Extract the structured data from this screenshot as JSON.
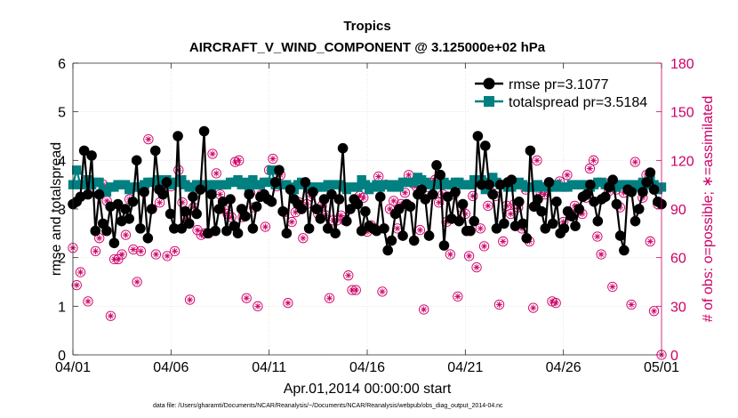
{
  "chart_data": {
    "type": "line",
    "title": "Tropics",
    "subtitle": "AIRCRAFT_V_WIND_COMPONENT @ 3.125000e+02 hPa",
    "xlabel": "Apr.01,2014 00:00:00 start",
    "ylabel": "rmse and totalspread",
    "y2label": "# of obs: o=possible; ∗=assimilated",
    "footnote": "data file: /Users/gharamti/Documents/NCAR/Reanalysis/~/Documents/NCAR/Reanalysis/webpub/obs_diag_output_2014-04.nc",
    "xlim": [
      0,
      30
    ],
    "ylim": [
      0,
      6
    ],
    "y2lim": [
      0,
      180
    ],
    "xticks": [
      0,
      5,
      10,
      15,
      20,
      25,
      30
    ],
    "xtick_labels": [
      "04/01",
      "04/06",
      "04/11",
      "04/16",
      "04/21",
      "04/26",
      "05/01"
    ],
    "yticks": [
      0,
      1,
      2,
      3,
      4,
      5,
      6
    ],
    "ytick_labels": [
      "0",
      "1",
      "2",
      "3",
      "4",
      "5",
      "6"
    ],
    "y2ticks": [
      0,
      30,
      60,
      90,
      120,
      150,
      180
    ],
    "y2tick_labels": [
      "0",
      "30",
      "60",
      "90",
      "120",
      "150",
      "180"
    ],
    "grid": true,
    "legend_position": "top-right",
    "colors": {
      "rmse": "#000000",
      "spread": "#008080",
      "obs": "#cc0066"
    },
    "series": [
      {
        "name": "rmse pr=3.1077",
        "axis": "left",
        "marker": "circle",
        "values": [
          3.1,
          3.15,
          3.25,
          4.2,
          3.3,
          4.1,
          2.55,
          3.3,
          2.7,
          2.55,
          3.05,
          2.3,
          3.1,
          2.75,
          3.0,
          2.8,
          3.15,
          4.0,
          2.6,
          3.35,
          2.4,
          3.0,
          4.2,
          3.4,
          3.3,
          3.55,
          2.9,
          2.6,
          4.5,
          2.6,
          2.95,
          2.7,
          3.25,
          2.9,
          3.4,
          4.6,
          2.5,
          3.3,
          2.55,
          3.0,
          3.15,
          2.55,
          3.2,
          2.65,
          2.5,
          3.0,
          2.85,
          3.3,
          2.6,
          3.05,
          3.25,
          3.3,
          3.2,
          3.15,
          3.55,
          3.8,
          2.95,
          2.5,
          3.4,
          3.2,
          3.1,
          3.0,
          3.55,
          2.6,
          3.35,
          3.0,
          2.8,
          3.2,
          2.6,
          3.3,
          2.5,
          3.2,
          4.25,
          2.75,
          3.0,
          3.2,
          3.1,
          2.55,
          2.95,
          2.65,
          2.6,
          2.55,
          3.25,
          2.6,
          2.15,
          2.35,
          2.9,
          3.0,
          2.45,
          3.1,
          3.05,
          2.35,
          3.3,
          3.4,
          3.2,
          2.45,
          3.3,
          3.9,
          3.7,
          2.25,
          3.25,
          2.8,
          3.35,
          2.75,
          3.1,
          2.55,
          2.55,
          2.75,
          4.5,
          3.5,
          4.3,
          3.5,
          3.3,
          2.6,
          3.5,
          2.7,
          3.55,
          3.6,
          2.65,
          3.15,
          2.7,
          2.4,
          4.2,
          3.05,
          3.2,
          2.95,
          2.6,
          3.55,
          2.7,
          3.15,
          2.5,
          2.6,
          2.95,
          2.85,
          2.65,
          3.0,
          3.25,
          3.3,
          3.5,
          3.15,
          2.75,
          3.2,
          3.25,
          3.45,
          3.6,
          3.1,
          2.45,
          2.15,
          3.4,
          3.35,
          2.75,
          3.0,
          3.35,
          3.55,
          3.75,
          3.4,
          3.15,
          3.1
        ]
      },
      {
        "name": "totalspread pr=3.5184",
        "axis": "left",
        "marker": "square",
        "values": [
          3.5,
          3.8,
          3.5,
          3.5,
          3.6,
          3.5,
          3.55,
          3.55,
          3.4,
          3.35,
          3.45,
          3.45,
          3.5,
          3.5,
          3.5,
          3.4,
          3.45,
          3.45,
          3.45,
          3.5,
          3.55,
          3.55,
          3.55,
          3.6,
          3.55,
          3.6,
          3.5,
          3.55,
          3.55,
          3.6,
          3.5,
          3.45,
          3.45,
          3.5,
          3.5,
          3.45,
          3.5,
          3.45,
          3.5,
          3.5,
          3.5,
          3.5,
          3.55,
          3.55,
          3.6,
          3.5,
          3.55,
          3.4,
          3.6,
          3.5,
          3.5,
          3.55,
          3.55,
          3.8,
          3.5,
          3.5,
          3.5,
          3.5,
          3.45,
          3.4,
          3.5,
          3.55,
          3.5,
          3.45,
          3.45,
          3.45,
          3.45,
          3.45,
          3.5,
          3.5,
          3.5,
          3.5,
          3.45,
          3.4,
          3.45,
          3.45,
          3.45,
          3.6,
          3.5,
          3.4,
          3.45,
          3.5,
          3.45,
          3.5,
          3.5,
          3.45,
          3.5,
          3.45,
          3.55,
          3.55,
          3.55,
          3.55,
          3.65,
          3.6,
          3.55,
          3.5,
          3.5,
          3.5,
          3.5,
          3.55,
          3.5,
          3.5,
          3.55,
          3.55,
          3.5,
          3.5,
          3.5,
          3.6,
          3.55,
          3.6,
          3.4,
          3.55,
          3.65,
          3.55,
          3.5,
          3.5,
          3.45,
          3.45,
          3.5,
          3.55,
          3.5,
          3.45,
          3.45,
          3.45,
          3.5,
          3.45,
          3.45,
          3.45,
          3.45,
          3.5,
          3.45,
          3.45,
          3.45,
          3.5,
          3.5,
          3.5,
          3.5,
          3.5,
          3.45,
          3.5,
          3.55,
          3.55,
          3.5,
          3.5,
          3.45,
          3.45,
          3.5,
          3.5,
          3.5,
          3.45,
          3.5,
          3.45,
          3.55,
          3.5,
          3.65,
          3.5,
          3.4,
          3.45
        ]
      },
      {
        "name": "possible",
        "axis": "right",
        "marker": "circle-open",
        "values": [
          66,
          43,
          51,
          106,
          33,
          105,
          64,
          72,
          105,
          95,
          24,
          59,
          59,
          62,
          74,
          96,
          65,
          45,
          64,
          104,
          133,
          90,
          62,
          94,
          102,
          61,
          104,
          64,
          114,
          94,
          84,
          34,
          91,
          77,
          74,
          75,
          75,
          124,
          112,
          99,
          90,
          87,
          85,
          119,
          120,
          85,
          35,
          100,
          91,
          30,
          99,
          79,
          114,
          121,
          104,
          111,
          88,
          32,
          82,
          88,
          94,
          72,
          93,
          98,
          102,
          87,
          92,
          86,
          35,
          83,
          83,
          86,
          83,
          49,
          40,
          40,
          98,
          97,
          76,
          80,
          78,
          110,
          39,
          105,
          90,
          95,
          78,
          93,
          100,
          111,
          106,
          104,
          77,
          28,
          98,
          106,
          108,
          94,
          99,
          82,
          62,
          99,
          36,
          91,
          87,
          61,
          98,
          54,
          78,
          67,
          92,
          100,
          98,
          31,
          70,
          92,
          87,
          93,
          91,
          78,
          102,
          70,
          29,
          120,
          100,
          99,
          105,
          33,
          32,
          107,
          82,
          111,
          86,
          92,
          89,
          87,
          97,
          115,
          120,
          73,
          62,
          106,
          101,
          42,
          102,
          91,
          100,
          103,
          31,
          119,
          104,
          97,
          111,
          70,
          27,
          93,
          0
        ]
      },
      {
        "name": "assimilated",
        "axis": "right",
        "marker": "star",
        "values": [
          66,
          43,
          51,
          106,
          33,
          105,
          64,
          72,
          105,
          95,
          24,
          59,
          59,
          62,
          74,
          96,
          65,
          45,
          64,
          104,
          133,
          90,
          62,
          94,
          102,
          61,
          104,
          64,
          114,
          94,
          84,
          34,
          91,
          77,
          74,
          75,
          75,
          124,
          112,
          99,
          90,
          87,
          85,
          119,
          120,
          85,
          35,
          100,
          91,
          30,
          99,
          79,
          114,
          121,
          104,
          111,
          88,
          32,
          82,
          88,
          94,
          72,
          93,
          98,
          102,
          87,
          92,
          86,
          35,
          83,
          83,
          86,
          83,
          49,
          40,
          40,
          98,
          97,
          76,
          80,
          78,
          110,
          39,
          105,
          90,
          95,
          78,
          93,
          100,
          111,
          106,
          104,
          77,
          28,
          98,
          106,
          108,
          94,
          99,
          82,
          62,
          99,
          36,
          91,
          87,
          61,
          98,
          54,
          78,
          67,
          92,
          100,
          98,
          31,
          70,
          92,
          87,
          93,
          91,
          78,
          102,
          70,
          29,
          120,
          100,
          99,
          105,
          33,
          32,
          107,
          82,
          111,
          86,
          92,
          89,
          87,
          97,
          115,
          120,
          73,
          62,
          106,
          101,
          42,
          102,
          91,
          100,
          103,
          31,
          119,
          104,
          97,
          111,
          70,
          27,
          93,
          0
        ]
      }
    ]
  }
}
